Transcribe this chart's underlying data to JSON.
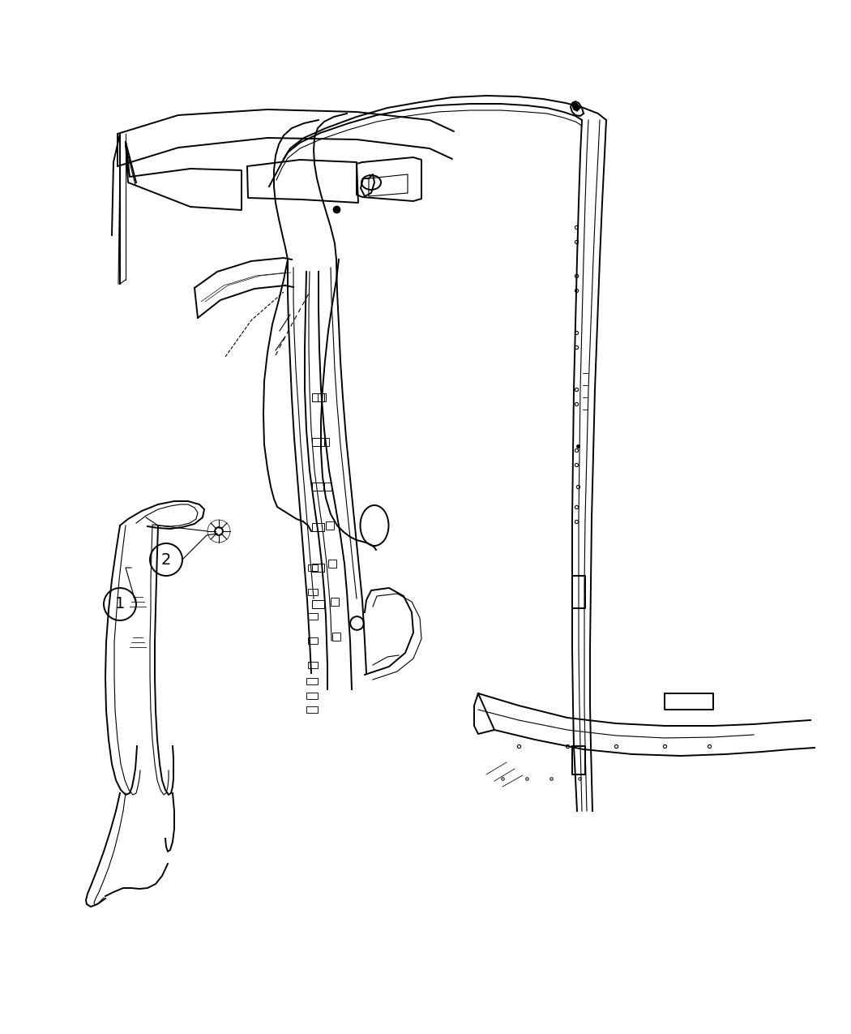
{
  "background_color": "#ffffff",
  "line_color": "#000000",
  "figure_width": 10.5,
  "figure_height": 12.75,
  "dpi": 100,
  "lw_main": 1.4,
  "lw_thin": 0.8,
  "lw_thick": 2.0
}
